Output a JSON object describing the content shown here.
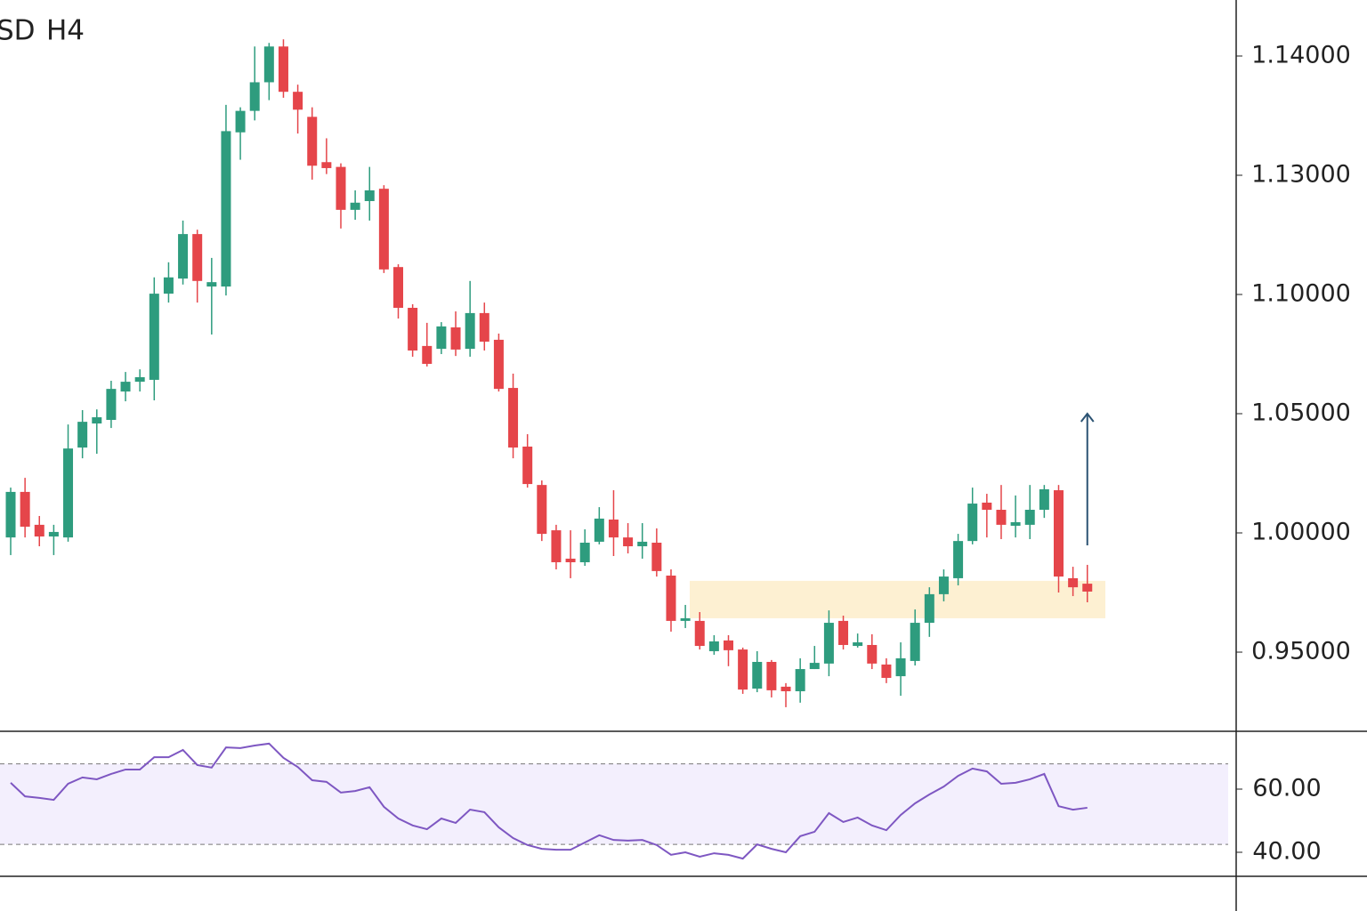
{
  "chart_data": [
    {
      "type": "candlestick",
      "symbol": "SD",
      "timeframe": "H4",
      "categories": [
        null,
        null,
        null,
        null,
        null,
        null,
        null,
        null,
        null,
        null,
        null,
        null,
        null,
        null,
        null,
        null,
        null,
        null,
        null,
        null,
        null,
        null,
        null,
        null,
        null,
        null,
        null,
        null,
        null,
        null,
        null,
        null,
        null,
        null,
        null,
        null,
        null,
        null,
        null,
        null,
        null,
        null,
        null,
        null,
        null,
        null,
        null,
        null,
        null,
        null,
        null,
        null,
        null,
        null,
        null,
        null,
        null,
        null,
        null,
        null,
        null,
        null,
        null,
        null,
        null,
        null,
        null,
        null,
        null,
        null,
        null,
        null,
        null,
        null,
        null,
        null
      ],
      "open": [
        0.9981,
        1.0172,
        1.0034,
        0.9985,
        0.9981,
        1.0358,
        1.0459,
        1.0474,
        1.0593,
        1.0634,
        1.0642,
        1.1002,
        1.104,
        1.1152,
        1.102,
        1.102,
        1.1336,
        1.1354,
        1.1378,
        1.1408,
        1.137,
        1.1349,
        1.1311,
        1.1307,
        1.1213,
        1.1235,
        1.1266,
        1.1069,
        1.0944,
        1.0784,
        1.0772,
        1.0862,
        1.0772,
        1.0922,
        1.081,
        1.0608,
        1.0362,
        1.0201,
        1.0011,
        0.9892,
        0.9877,
        0.9963,
        1.0056,
        0.9981,
        0.9944,
        0.9959,
        0.9821,
        0.9631,
        0.9631,
        0.9504,
        0.9549,
        0.9511,
        0.9347,
        0.9459,
        0.9355,
        0.9336,
        0.9429,
        0.9452,
        0.9631,
        0.9526,
        0.953,
        0.9448,
        0.9399,
        0.9463,
        0.9623,
        0.9743,
        0.981,
        0.9966,
        1.0127,
        1.0097,
        1.003,
        1.0034,
        1.0097,
        1.0179,
        0.981,
        0.9787
      ],
      "high": [
        1.019,
        1.0231,
        1.0071,
        1.0034,
        1.0455,
        1.0515,
        1.0518,
        1.0638,
        1.0675,
        1.0686,
        1.1043,
        1.1081,
        1.1186,
        1.1163,
        1.1092,
        1.1359,
        1.1357,
        1.1408,
        1.1411,
        1.1414,
        1.1376,
        1.1357,
        1.1331,
        1.131,
        1.1262,
        1.1307,
        1.1275,
        1.1076,
        1.0959,
        1.0881,
        1.0884,
        1.0929,
        1.1034,
        1.0966,
        1.0836,
        1.0668,
        1.0414,
        1.022,
        1.0034,
        1.0011,
        1.0015,
        1.0108,
        1.0179,
        1.0041,
        1.0041,
        1.0019,
        0.9847,
        0.9698,
        0.9668,
        0.9571,
        0.9571,
        0.9519,
        0.9504,
        0.9467,
        0.937,
        0.9474,
        0.9526,
        0.9675,
        0.9653,
        0.9578,
        0.9575,
        0.9474,
        0.9541,
        0.9679,
        0.9772,
        0.9847,
        0.9996,
        1.019,
        1.0164,
        1.0201,
        1.0157,
        1.0201,
        1.0201,
        1.0201,
        0.9858,
        0.9866
      ],
      "low": [
        0.9907,
        0.9981,
        0.9944,
        0.9907,
        0.9963,
        1.0313,
        1.0332,
        1.044,
        1.0552,
        1.0593,
        1.0556,
        1.0966,
        1.1025,
        1.0966,
        1.0832,
        1.0996,
        1.1313,
        1.1346,
        1.1363,
        1.1365,
        1.1335,
        1.1289,
        1.1301,
        1.1166,
        1.1188,
        1.1186,
        1.1054,
        1.0899,
        1.0739,
        1.0698,
        1.075,
        1.0742,
        1.0739,
        1.0765,
        1.0593,
        1.0313,
        1.019,
        0.9966,
        0.9847,
        0.981,
        0.9862,
        0.9952,
        0.9903,
        0.9914,
        0.9892,
        0.9817,
        0.9586,
        0.9601,
        0.9511,
        0.9489,
        0.9441,
        0.9325,
        0.9332,
        0.931,
        0.9269,
        0.9288,
        0.9429,
        0.9399,
        0.9511,
        0.9519,
        0.9429,
        0.937,
        0.9317,
        0.9444,
        0.9564,
        0.9713,
        0.978,
        0.9952,
        0.9981,
        0.9974,
        0.9981,
        0.9974,
        1.0063,
        0.975,
        0.9735,
        0.9709
      ],
      "close": [
        1.0172,
        1.0026,
        0.9985,
        1.0004,
        1.0354,
        1.0466,
        1.0485,
        1.0604,
        1.0634,
        1.0653,
        1.1002,
        1.1043,
        1.1152,
        1.1034,
        1.1031,
        1.1337,
        1.1354,
        1.1378,
        1.1408,
        1.137,
        1.1355,
        1.1308,
        1.1306,
        1.1213,
        1.1231,
        1.1262,
        1.1063,
        1.0944,
        1.0765,
        1.0709,
        1.0866,
        1.0769,
        1.0922,
        1.0802,
        1.0604,
        1.0358,
        1.0205,
        0.9996,
        0.9877,
        0.9877,
        0.9959,
        1.006,
        0.9981,
        0.9944,
        0.9963,
        0.984,
        0.9631,
        0.9642,
        0.9526,
        0.9545,
        0.9508,
        0.9343,
        0.9459,
        0.934,
        0.9336,
        0.9429,
        0.9455,
        0.9623,
        0.953,
        0.9541,
        0.9452,
        0.9392,
        0.9474,
        0.9623,
        0.9743,
        0.9817,
        0.9966,
        1.0123,
        1.0097,
        1.0034,
        1.0045,
        1.0097,
        1.0183,
        0.9817,
        0.9772,
        0.9754
      ],
      "up_color": "#2e9c7e",
      "down_color": "#e5454a",
      "ylim": [
        0.9168,
        1.1447
      ],
      "yticks": [
        {
          "value": 0.95,
          "label": "0.95000"
        },
        {
          "value": 1.0,
          "label": "1.00000"
        },
        {
          "value": 1.05,
          "label": "1.05000"
        },
        {
          "value": 1.1,
          "label": "1.10000"
        },
        {
          "value": 1.13,
          "label": "1.13000"
        },
        {
          "value": 1.14,
          "label": "1.14000"
        }
      ],
      "zone": {
        "low": 0.9642,
        "high": 0.9799,
        "color": "#fdf0d2"
      },
      "arrow": {
        "from": 0.9948,
        "to": 1.05,
        "color": "#2c5373"
      }
    },
    {
      "type": "line",
      "values": [
        62.0,
        57.7,
        57.2,
        56.6,
        61.7,
        63.7,
        63.1,
        64.8,
        66.2,
        66.2,
        70.1,
        70.1,
        72.4,
        67.6,
        66.8,
        73.2,
        73.0,
        73.8,
        74.4,
        69.9,
        67.0,
        62.8,
        62.3,
        58.9,
        59.4,
        60.6,
        54.4,
        50.7,
        48.5,
        47.3,
        50.7,
        49.3,
        53.5,
        52.7,
        47.9,
        44.5,
        42.3,
        41.1,
        40.8,
        40.8,
        43.1,
        45.4,
        43.9,
        43.7,
        43.9,
        42.3,
        39.2,
        40.0,
        38.6,
        39.7,
        39.2,
        38.0,
        42.5,
        41.1,
        40.0,
        45.1,
        46.5,
        52.4,
        49.6,
        51.0,
        48.5,
        47.0,
        51.8,
        55.5,
        58.3,
        60.8,
        64.2,
        66.5,
        65.6,
        61.7,
        62.0,
        63.1,
        64.8,
        54.6,
        53.5,
        54.1
      ],
      "color": "#7e57c2",
      "ylim": [
        32.4,
        78.3
      ],
      "yticks": [
        {
          "value": 60,
          "label": "60.00"
        },
        {
          "value": 40,
          "label": "40.00"
        }
      ],
      "levels": [
        68,
        42.5
      ],
      "band_color": "#f3effd"
    }
  ]
}
